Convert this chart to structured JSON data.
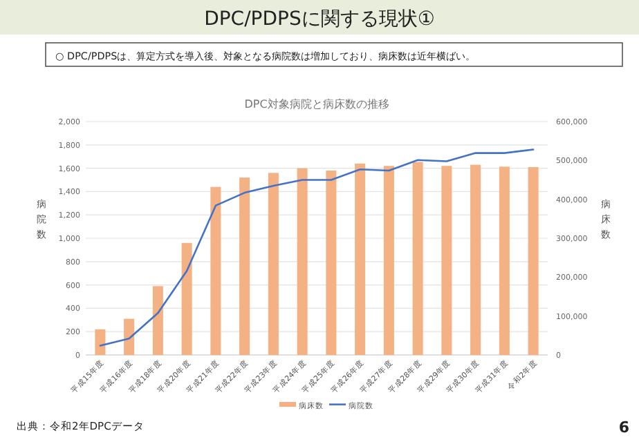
{
  "chart_data": {
    "type": "bar",
    "title": "DPC/PDPSに関する現状①",
    "subtitle": "○ DPC/PDPSは、算定方式を導入後、対象となる病院数は増加しており、病床数は近年横ばい。",
    "annotations": [
      "DPC対象病院と病床数の推移",
      "出典：令和2年DPCデータ",
      "6"
    ],
    "ylabel": "病院数",
    "y2label": "病床数",
    "categories": [
      "平成15年度",
      "平成16年度",
      "平成18年度",
      "平成20年度",
      "平成21年度",
      "平成22年度",
      "平成23年度",
      "平成24年度",
      "平成25年度",
      "平成26年度",
      "平成27年度",
      "平成28年度",
      "平成29年度",
      "平成30年度",
      "平成31年度",
      "令和2年度"
    ],
    "series": [
      {
        "name": "病床数",
        "axis": "y2",
        "color": "#f4b183",
        "values": [
          66000,
          93000,
          177000,
          288000,
          432000,
          456000,
          468000,
          480000,
          474000,
          492000,
          486000,
          496000,
          486000,
          489000,
          484000,
          483000
        ]
      },
      {
        "name": "病院数",
        "type": "line",
        "color": "#4472c4",
        "values": [
          80,
          140,
          360,
          720,
          1280,
          1390,
          1450,
          1500,
          1500,
          1590,
          1580,
          1670,
          1660,
          1730,
          1730,
          1760
        ]
      }
    ],
    "ylim": [
      0,
      2000
    ],
    "yticks": [
      0,
      {
        "value": 200,
        "label": "200"
      },
      {
        "value": 400,
        "label": "400"
      },
      {
        "value": 600,
        "label": "600"
      },
      {
        "value": 800,
        "label": "800"
      },
      {
        "value": 1000,
        "label": "1,000"
      },
      {
        "value": 1200,
        "label": "1,200"
      },
      {
        "value": 1400,
        "label": "1,400"
      },
      {
        "value": 1600,
        "label": "1,600"
      },
      {
        "value": 1800,
        "label": "1,800"
      },
      {
        "value": 2000,
        "label": "2,000"
      }
    ],
    "y2lim": [
      0,
      600000
    ],
    "y2ticks": [
      0,
      {
        "value": 100000,
        "label": "100,000"
      },
      {
        "value": 200000,
        "label": "200,000"
      },
      {
        "value": 300000,
        "label": "300,000"
      },
      {
        "value": 400000,
        "label": "400,000"
      },
      {
        "value": 500000,
        "label": "500,000"
      },
      {
        "value": 600000,
        "label": "600,000"
      }
    ],
    "grid": "y",
    "legend": "bottom",
    "marker": "none",
    "line_style": "solid"
  }
}
